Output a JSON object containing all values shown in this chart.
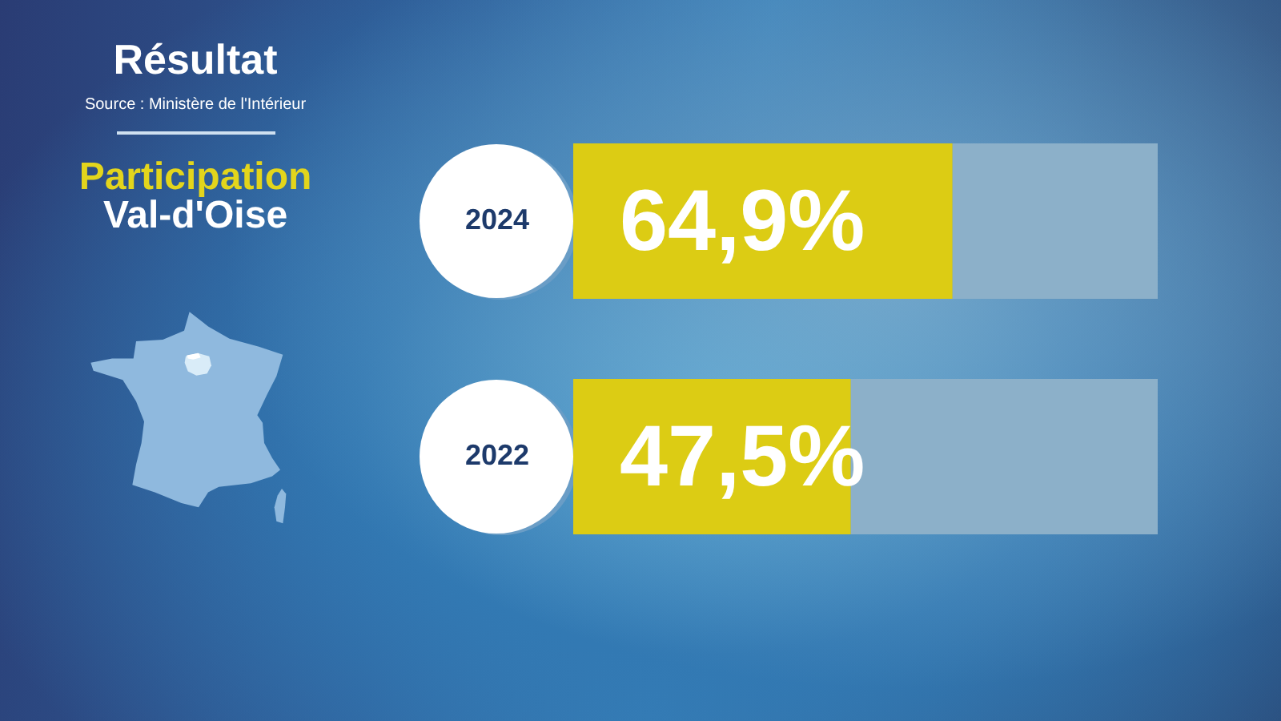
{
  "chart_data": {
    "type": "bar",
    "orientation": "horizontal",
    "stacked": true,
    "title": "Résultat",
    "subtitle": "Participation",
    "annotations": [
      "Source : Ministère de l'Intérieur",
      "Val-d'Oise"
    ],
    "categories": [
      "2024",
      "2022"
    ],
    "series": [
      {
        "color": "#dccc14",
        "values": [
          64.9,
          47.5
        ],
        "value_labels": [
          "64,9%",
          "47,5%"
        ]
      },
      {
        "color": "#8cb0c9",
        "values": [
          35.1,
          52.5
        ]
      }
    ],
    "xlim": [
      0,
      100
    ],
    "tick_labels": "y"
  }
}
